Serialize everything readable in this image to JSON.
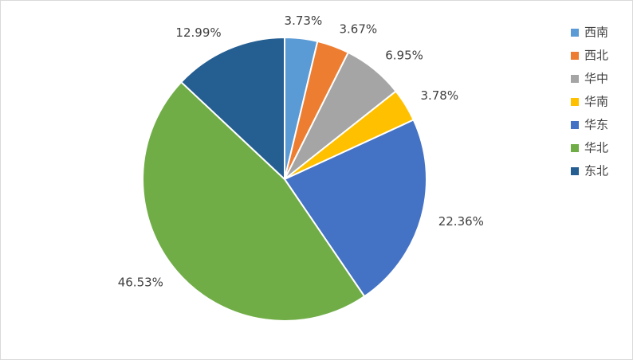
{
  "chart_data": {
    "type": "pie",
    "categories": [
      "西南",
      "西北",
      "华中",
      "华南",
      "华东",
      "华北",
      "东北"
    ],
    "values": [
      3.73,
      3.67,
      6.95,
      3.78,
      22.36,
      46.53,
      12.99
    ],
    "value_labels": [
      "3.73%",
      "3.67%",
      "6.95%",
      "3.78%",
      "22.36%",
      "46.53%",
      "12.99%"
    ],
    "colors": [
      "#5b9bd5",
      "#ed7d31",
      "#a5a5a5",
      "#ffc000",
      "#4472c4",
      "#70ad47",
      "#255e91"
    ],
    "legend": "right"
  }
}
